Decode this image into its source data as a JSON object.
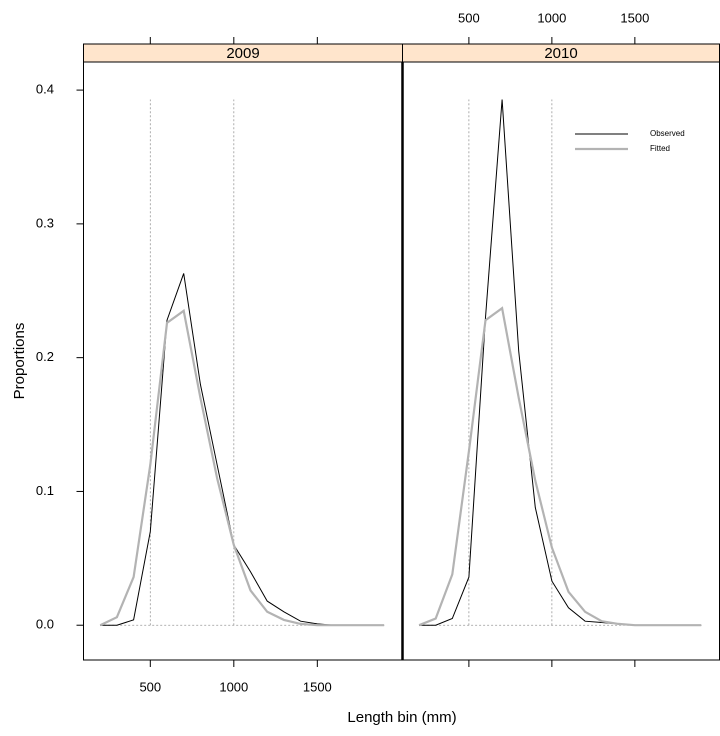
{
  "chart_data": {
    "type": "line",
    "xlabel": "Length bin (mm)",
    "ylabel": "Proportions",
    "xlim": [
      100,
      2010
    ],
    "ylim": [
      -0.026,
      0.421
    ],
    "xticks": [
      500,
      1000,
      1500
    ],
    "yticks": [
      0.0,
      0.1,
      0.2,
      0.3,
      0.4
    ],
    "yticks_labels": [
      "0.0",
      "0.1",
      "0.2",
      "0.3",
      "0.4"
    ],
    "vlines": [
      500,
      1000
    ],
    "hlines": [
      0
    ],
    "strip_color": "#ffe5cc",
    "x": [
      200,
      300,
      400,
      500,
      600,
      700,
      800,
      900,
      1000,
      1100,
      1200,
      1300,
      1400,
      1500,
      1600,
      1700,
      1800,
      1900
    ],
    "series": [
      {
        "name": "Observed",
        "color": "#000000",
        "width": 1
      },
      {
        "name": "Fitted",
        "color": "#b3b3b3",
        "width": 2.2
      }
    ],
    "panels": [
      {
        "title": "2009",
        "values": [
          [
            0,
            0,
            0.004,
            0.07,
            0.228,
            0.263,
            0.18,
            0.12,
            0.06,
            0.04,
            0.018,
            0.01,
            0.003,
            0.001,
            0,
            0,
            0,
            0
          ],
          [
            0,
            0.006,
            0.036,
            0.12,
            0.226,
            0.235,
            0.17,
            0.11,
            0.06,
            0.026,
            0.01,
            0.004,
            0.001,
            0,
            0,
            0,
            0,
            0
          ]
        ]
      },
      {
        "title": "2010",
        "values": [
          [
            0,
            0,
            0.005,
            0.036,
            0.23,
            0.393,
            0.205,
            0.088,
            0.033,
            0.013,
            0.003,
            0.002,
            0.001,
            0,
            0,
            0,
            0,
            0
          ],
          [
            0,
            0.005,
            0.038,
            0.13,
            0.228,
            0.237,
            0.17,
            0.108,
            0.058,
            0.025,
            0.01,
            0.003,
            0.001,
            0,
            0,
            0,
            0,
            0
          ]
        ]
      }
    ]
  }
}
